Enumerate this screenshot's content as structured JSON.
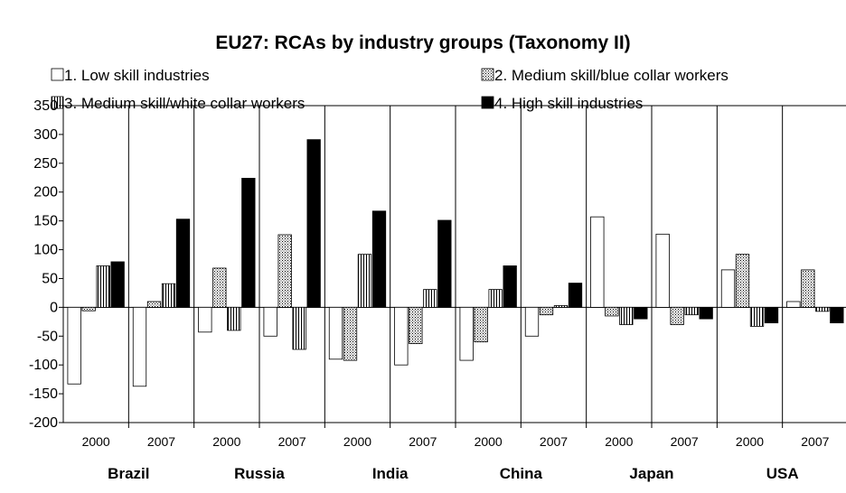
{
  "chart_data": {
    "type": "bar",
    "title": "EU27: RCAs by industry groups (Taxonomy II)",
    "ylim": [
      -200,
      350
    ],
    "yticks": [
      350,
      300,
      250,
      200,
      150,
      100,
      50,
      0,
      -50,
      -100,
      -150,
      -200
    ],
    "grid": false,
    "legend_position": "top",
    "categories": [
      "2000",
      "2007",
      "2000",
      "2007",
      "2000",
      "2007",
      "2000",
      "2007",
      "2000",
      "2007",
      "2000",
      "2007"
    ],
    "groups": [
      {
        "label": "Brazil"
      },
      {
        "label": "Russia"
      },
      {
        "label": "India"
      },
      {
        "label": "China"
      },
      {
        "label": "Japan"
      },
      {
        "label": "USA"
      }
    ],
    "series": [
      {
        "name": "1. Low skill industries",
        "pattern": "white",
        "values": [
          -133,
          -137,
          -43,
          -50,
          -90,
          -100,
          -92,
          -50,
          157,
          127,
          65,
          10
        ]
      },
      {
        "name": "2. Medium skill/blue collar workers",
        "pattern": "dots",
        "values": [
          -6,
          10,
          68,
          126,
          -92,
          -63,
          -60,
          -13,
          -15,
          -30,
          92,
          65
        ]
      },
      {
        "name": "3. Medium skill/white collar workers",
        "pattern": "vertical-lines",
        "values": [
          72,
          41,
          -40,
          -73,
          92,
          31,
          31,
          3,
          -30,
          -13,
          -33,
          -7
        ]
      },
      {
        "name": "4. High skill industries",
        "pattern": "black",
        "values": [
          79,
          153,
          224,
          291,
          167,
          151,
          72,
          42,
          -20,
          -20,
          -27,
          -27
        ]
      }
    ]
  }
}
